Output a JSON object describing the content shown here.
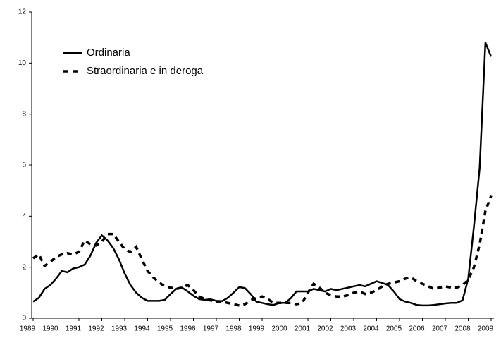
{
  "chart_data": {
    "type": "line",
    "categories": [
      "1989",
      null,
      null,
      null,
      "1990",
      null,
      null,
      null,
      "1991",
      null,
      null,
      null,
      "1992",
      null,
      null,
      null,
      "1993",
      null,
      null,
      null,
      "1994",
      null,
      null,
      null,
      "1995",
      null,
      null,
      null,
      "1996",
      null,
      null,
      null,
      "1997",
      null,
      null,
      null,
      "1998",
      null,
      null,
      null,
      "1999",
      null,
      null,
      null,
      "2000",
      null,
      null,
      null,
      "2001",
      null,
      null,
      null,
      "2002",
      null,
      null,
      null,
      "2003",
      null,
      null,
      null,
      "2004",
      null,
      null,
      null,
      "2005",
      null,
      null,
      null,
      "2006",
      null,
      null,
      null,
      "2007",
      null,
      null,
      null,
      "2008",
      null,
      null,
      null,
      "2009"
    ],
    "series": [
      {
        "name": "Ordinaria",
        "color": "#000000",
        "style": "solid",
        "values": [
          0.65,
          0.8,
          1.15,
          1.3,
          1.55,
          1.85,
          1.8,
          1.95,
          2.0,
          2.1,
          2.45,
          2.95,
          3.25,
          3.05,
          2.75,
          2.3,
          1.75,
          1.3,
          1.0,
          0.8,
          0.68,
          0.68,
          0.68,
          0.72,
          0.95,
          1.15,
          1.2,
          1.05,
          0.88,
          0.75,
          0.72,
          0.74,
          0.68,
          0.67,
          0.8,
          1.0,
          1.22,
          1.18,
          0.95,
          0.65,
          0.6,
          0.55,
          0.52,
          0.6,
          0.6,
          0.78,
          1.05,
          1.05,
          1.05,
          1.15,
          1.1,
          1.05,
          1.15,
          1.1,
          1.15,
          1.2,
          1.25,
          1.3,
          1.25,
          1.35,
          1.45,
          1.38,
          1.3,
          1.05,
          0.75,
          0.65,
          0.6,
          0.52,
          0.5,
          0.5,
          0.52,
          0.55,
          0.58,
          0.6,
          0.6,
          0.7,
          1.55,
          3.6,
          5.9,
          10.8,
          10.25
        ]
      },
      {
        "name": "Straordinaria e in deroga",
        "color": "#000000",
        "style": "dashed",
        "values": [
          2.35,
          2.5,
          2.05,
          2.2,
          2.4,
          2.5,
          2.55,
          2.5,
          2.6,
          3.05,
          2.9,
          2.85,
          3.0,
          3.3,
          3.3,
          3.0,
          2.7,
          2.6,
          2.8,
          2.3,
          1.85,
          1.6,
          1.4,
          1.25,
          1.2,
          1.15,
          1.2,
          1.3,
          1.1,
          0.85,
          0.75,
          0.7,
          0.65,
          0.65,
          0.6,
          0.55,
          0.5,
          0.55,
          0.7,
          0.8,
          0.85,
          0.75,
          0.6,
          0.6,
          0.6,
          0.6,
          0.55,
          0.6,
          1.0,
          1.35,
          1.2,
          1.0,
          0.9,
          0.85,
          0.85,
          0.9,
          1.0,
          1.05,
          0.95,
          1.0,
          1.1,
          1.25,
          1.35,
          1.4,
          1.45,
          1.55,
          1.6,
          1.45,
          1.35,
          1.25,
          1.15,
          1.2,
          1.25,
          1.2,
          1.2,
          1.3,
          1.5,
          2.0,
          2.9,
          4.2,
          4.8
        ]
      }
    ],
    "ylim": [
      0,
      12
    ],
    "yticks": [
      0,
      2,
      4,
      6,
      8,
      10,
      12
    ],
    "legend": "upper-left"
  }
}
